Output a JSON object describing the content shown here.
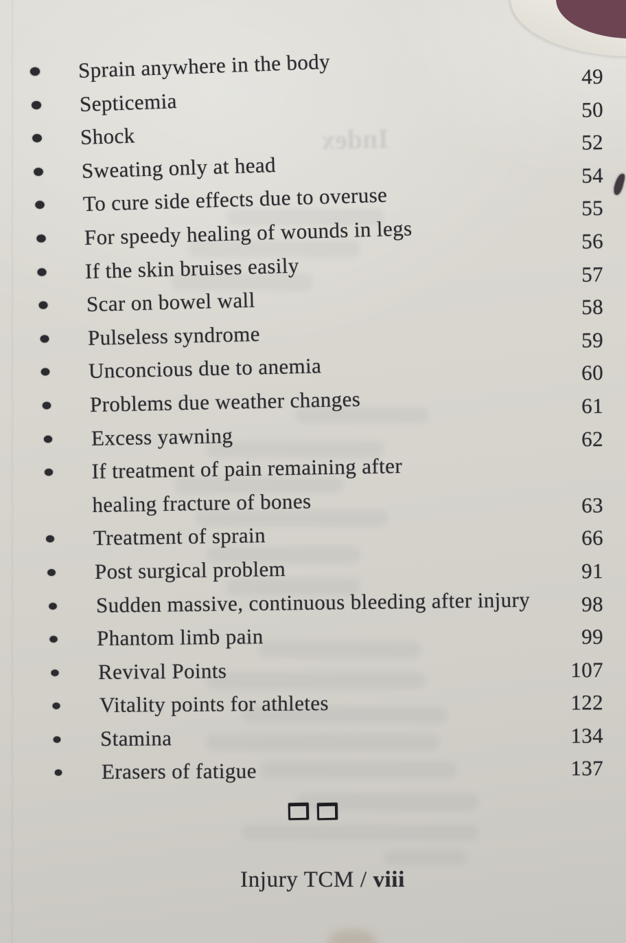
{
  "colors": {
    "page_background": "#d8d6cf",
    "ink": "#2b2b30",
    "cover_corner": "#6d4552"
  },
  "toc": {
    "entries": [
      {
        "label": "Sprain anywhere in the body",
        "page": "49"
      },
      {
        "label": "Septicemia",
        "page": "50"
      },
      {
        "label": "Shock",
        "page": "52"
      },
      {
        "label": "Sweating only at head",
        "page": "54"
      },
      {
        "label": "To cure side effects due to overuse",
        "page": "55"
      },
      {
        "label": "For speedy healing of wounds in legs",
        "page": "56"
      },
      {
        "label": "If the skin bruises easily",
        "page": "57"
      },
      {
        "label": "Scar on bowel wall",
        "page": "58"
      },
      {
        "label": "Pulseless syndrome",
        "page": "59"
      },
      {
        "label": "Unconcious due to anemia",
        "page": "60"
      },
      {
        "label": "Problems due weather changes",
        "page": "61"
      },
      {
        "label": "Excess yawning",
        "page": "62"
      },
      {
        "label": "If treatment of pain remaining after",
        "label_line2": "healing fracture of bones",
        "page": "63"
      },
      {
        "label": "Treatment of sprain",
        "page": "66"
      },
      {
        "label": "Post surgical problem",
        "page": "91"
      },
      {
        "label": "Sudden massive, continuous bleeding after injury",
        "page": "98"
      },
      {
        "label": "Phantom limb pain",
        "page": "99"
      },
      {
        "label": "Revival Points",
        "page": "107"
      },
      {
        "label": "Vitality points for athletes",
        "page": "122"
      },
      {
        "label": "Stamina",
        "page": "134"
      },
      {
        "label": "Erasers of fatigue",
        "page": "137"
      }
    ]
  },
  "divider": {
    "icon": "two-hollow-squares"
  },
  "footer": {
    "book_title": "Injury TCM",
    "separator": " / ",
    "page_number_roman": "viii"
  },
  "ghost_showthrough_text": "Index"
}
